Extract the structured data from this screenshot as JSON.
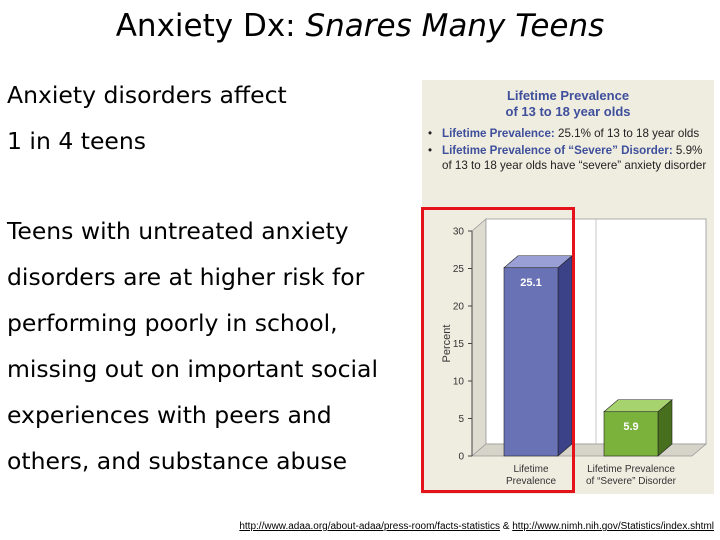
{
  "slide": {
    "title_prefix": "Anxiety Dx: ",
    "title_italic": "Snares Many Teens",
    "paragraph1": [
      "Anxiety disorders affect",
      "1 in 4 teens"
    ],
    "paragraph2": [
      "Teens with untreated anxiety",
      "disorders are at higher risk for",
      "performing poorly in school,",
      "missing out on important social",
      "experiences with peers and",
      "others, and substance abuse"
    ],
    "sources": {
      "link1": "http://www.adaa.org/about-adaa/press-room/facts-statistics",
      "separator": " & ",
      "link2": "http://www.nimh.nih.gov/Statistics/index.shtml"
    }
  },
  "infobox": {
    "title_line1": "Lifetime Prevalence",
    "title_line2": "of 13 to 18 year olds",
    "bullets": [
      {
        "label": "Lifetime Prevalence:",
        "text": " 25.1% of 13 to 18 year olds"
      },
      {
        "label": "Lifetime Prevalence of “Severe” Disorder:",
        "text": " 5.9% of 13 to 18 year olds have “severe” anxiety disorder"
      }
    ]
  },
  "chart_data": {
    "type": "bar",
    "categories": [
      [
        "Lifetime",
        "Prevalence"
      ],
      [
        "Lifetime Prevalence",
        "of “Severe” Disorder"
      ]
    ],
    "values": [
      25.1,
      5.9
    ],
    "value_labels": [
      "25.1",
      "5.9"
    ],
    "ylabel": "Percent",
    "ylim": [
      0,
      30
    ],
    "yticks": [
      0,
      5,
      10,
      15,
      20,
      25,
      30
    ],
    "grid": false,
    "colors": {
      "bar1_front": "#6a72b6",
      "bar1_side": "#3c4287",
      "bar1_top": "#9aa0d6",
      "bar2_front": "#7ab23c",
      "bar2_side": "#476f1d",
      "bar2_top": "#a7d36e",
      "plot_bg": "#ffffff",
      "panel_bg": "#efece0"
    }
  }
}
